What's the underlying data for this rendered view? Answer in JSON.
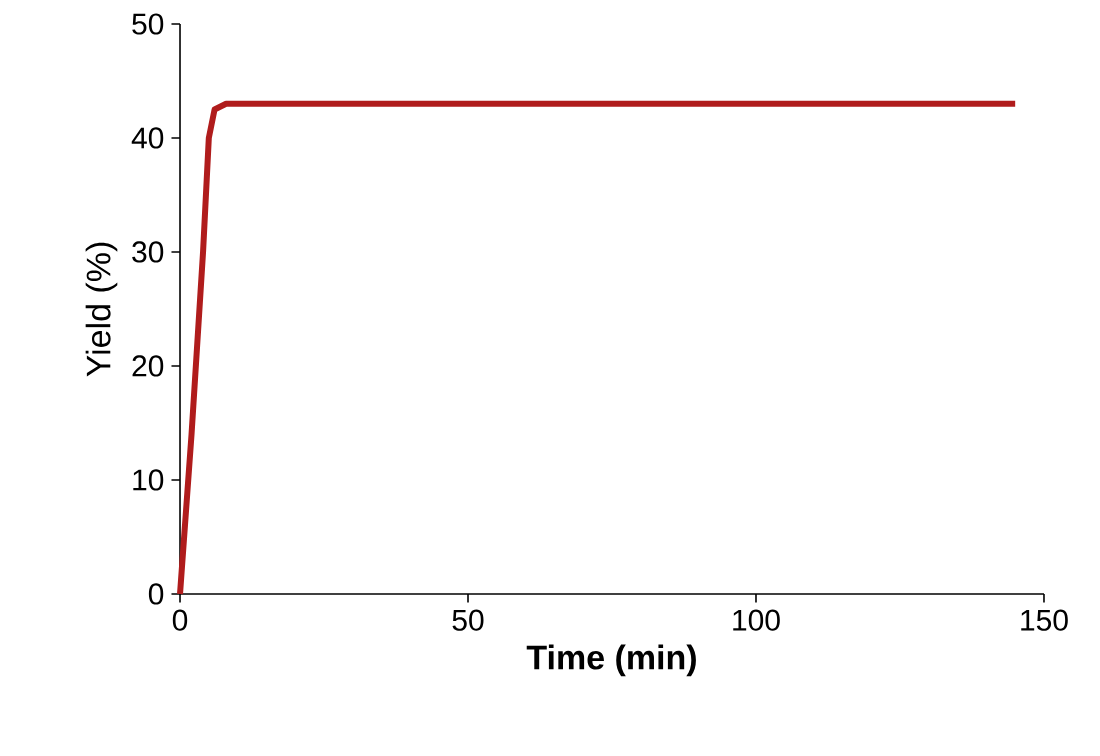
{
  "chart_data": {
    "type": "line",
    "xlabel": "Time (min)",
    "ylabel": "Yield (%)",
    "series": [
      {
        "color": "#b01c1c",
        "x": [
          0,
          2,
          4,
          5,
          6,
          8,
          145
        ],
        "values": [
          0,
          14,
          30,
          40,
          42.5,
          43,
          43
        ]
      }
    ],
    "xlim": [
      0,
      150
    ],
    "xticks": [
      0,
      50,
      100,
      150
    ],
    "ylim": [
      0,
      50
    ],
    "yticks": [
      0,
      10,
      20,
      30,
      40,
      50
    ],
    "marker": "none",
    "line_style": "solid"
  }
}
